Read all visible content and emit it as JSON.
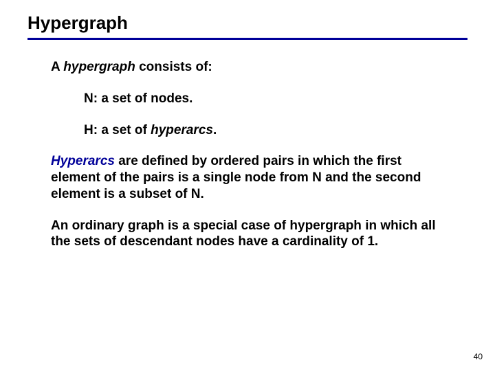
{
  "title": "Hypergraph",
  "intro_a": "A ",
  "intro_hypergraph": "hypergraph",
  "intro_b": " consists of:",
  "item_n": "N: a set of nodes.",
  "item_h_a": "H: a set of ",
  "item_h_hyperarcs": "hyperarcs",
  "item_h_b": ".",
  "para_hyperarcs_term": "Hyperarcs",
  "para_hyperarcs_rest": " are defined by ordered pairs in which the first element of the pairs is a single node from N and the second element is a subset of N.",
  "para_ordinary": "An ordinary graph is a special case of hypergraph in which all the sets of descendant nodes have a cardinality of 1.",
  "page_number": "40"
}
